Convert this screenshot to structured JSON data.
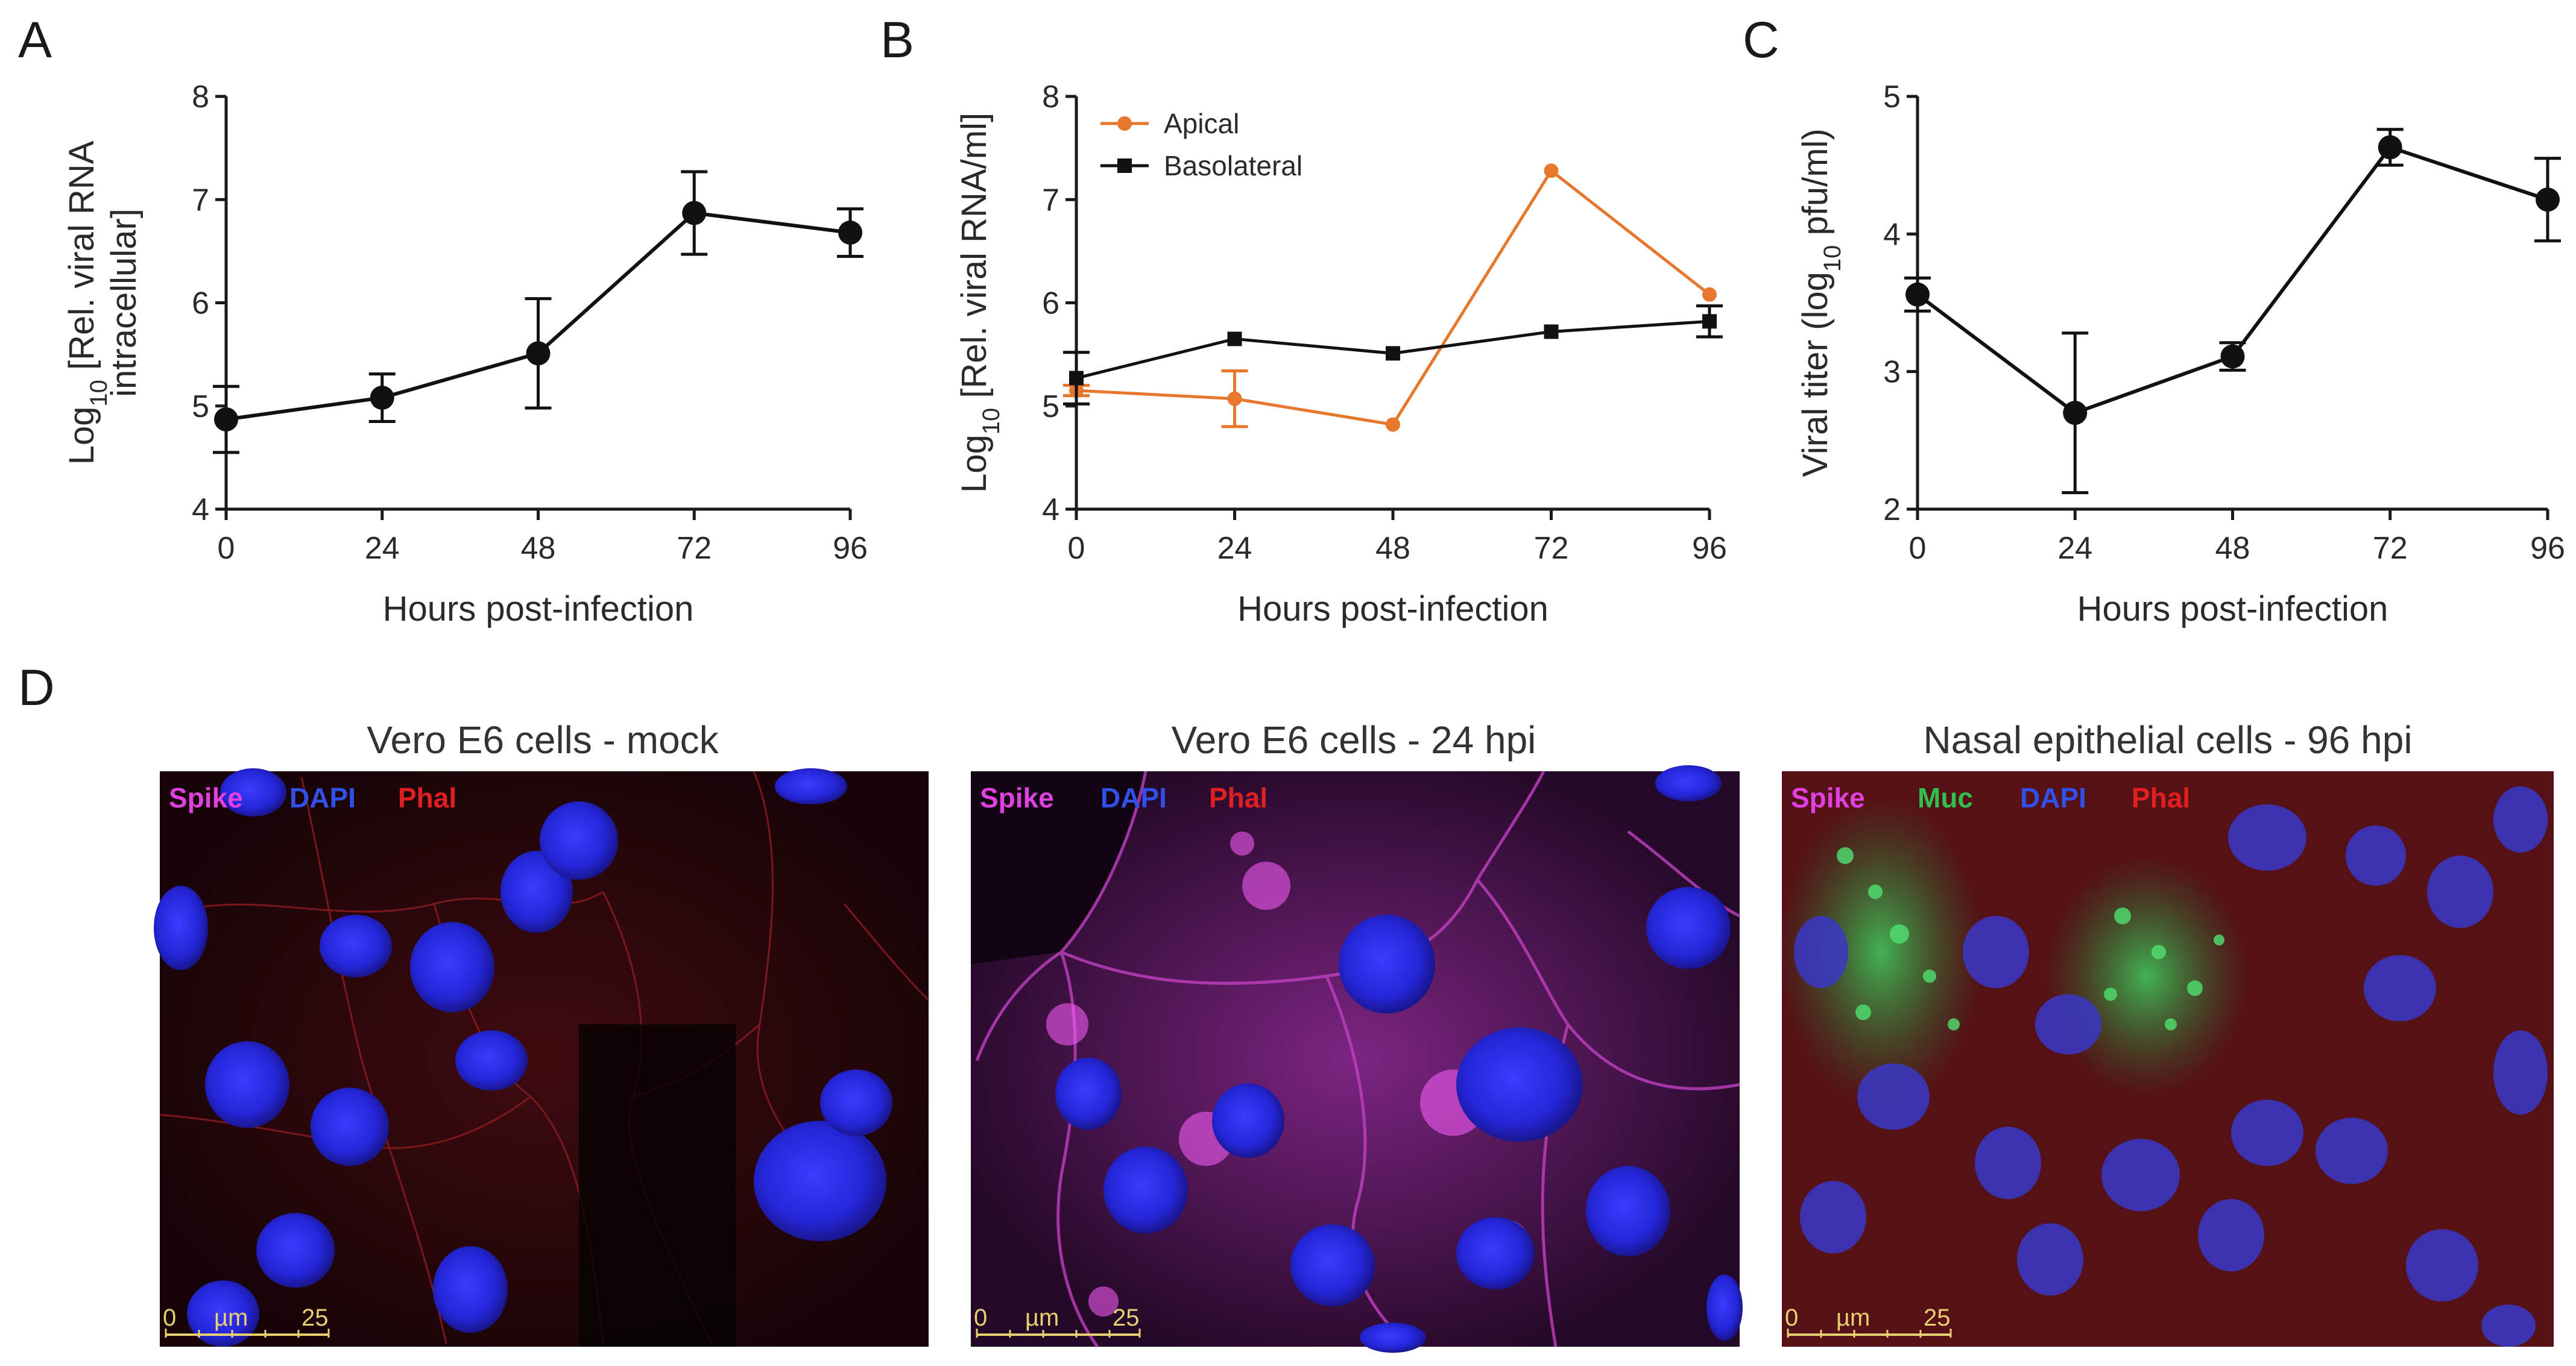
{
  "panels": {
    "A": {
      "letter": "A"
    },
    "B": {
      "letter": "B"
    },
    "C": {
      "letter": "C"
    },
    "D": {
      "letter": "D"
    }
  },
  "chart_data": [
    {
      "id": "A",
      "type": "line",
      "x": [
        0,
        24,
        48,
        72,
        96
      ],
      "xticks": [
        "0",
        "24",
        "48",
        "72",
        "96"
      ],
      "xlim": [
        0,
        96
      ],
      "ylim": [
        4,
        8
      ],
      "yticks": [
        "4",
        "5",
        "6",
        "7",
        "8"
      ],
      "xlabel": "Hours post-infection",
      "ylabel_line1": "Log10 [Rel. viral RNA",
      "ylabel_line2": "intracellular]",
      "series": [
        {
          "values": [
            4.87,
            5.08,
            5.51,
            6.87,
            6.68
          ],
          "err": [
            0.32,
            0.23,
            0.53,
            0.4,
            0.23
          ],
          "color": "#111111",
          "marker": "circle"
        }
      ]
    },
    {
      "id": "B",
      "type": "line",
      "x": [
        0,
        24,
        48,
        72,
        96
      ],
      "xticks": [
        "0",
        "24",
        "48",
        "72",
        "96"
      ],
      "xlim": [
        0,
        96
      ],
      "ylim": [
        4,
        8
      ],
      "yticks": [
        "4",
        "5",
        "6",
        "7",
        "8"
      ],
      "xlabel": "Hours post-infection",
      "ylabel": "Log10 [Rel. viral RNA/ml]",
      "legend_position": "top-left",
      "series": [
        {
          "name": "Apical",
          "values": [
            5.15,
            5.07,
            4.82,
            7.28,
            6.08
          ],
          "err": [
            0.05,
            0.27,
            0.0,
            0.0,
            0.0
          ],
          "color": "#e8772e",
          "marker": "circle"
        },
        {
          "name": "Basolateral",
          "values": [
            5.27,
            5.65,
            5.51,
            5.72,
            5.82
          ],
          "err": [
            0.25,
            0.0,
            0.0,
            0.0,
            0.15
          ],
          "color": "#111111",
          "marker": "square"
        }
      ]
    },
    {
      "id": "C",
      "type": "line",
      "x": [
        0,
        24,
        48,
        72,
        96
      ],
      "xticks": [
        "0",
        "24",
        "48",
        "72",
        "96"
      ],
      "xlim": [
        0,
        96
      ],
      "ylim": [
        2,
        5
      ],
      "yticks": [
        "2",
        "3",
        "4",
        "5"
      ],
      "xlabel": "Hours post-infection",
      "ylabel": "Viral titer (log10 pfu/ml)",
      "series": [
        {
          "values": [
            3.56,
            2.7,
            3.11,
            4.63,
            4.25
          ],
          "err": [
            0.12,
            0.58,
            0.1,
            0.13,
            0.3
          ],
          "color": "#111111",
          "marker": "circle"
        }
      ]
    }
  ],
  "micrographs": [
    {
      "title": "Vero E6 cells - mock",
      "stains": [
        {
          "label": "Spike",
          "color": "#e040e0"
        },
        {
          "label": "DAPI",
          "color": "#3050e8"
        },
        {
          "label": "Phal",
          "color": "#e02020"
        }
      ],
      "scale": {
        "start": "0",
        "unit": "µm",
        "end": "25"
      }
    },
    {
      "title": "Vero E6 cells - 24 hpi",
      "stains": [
        {
          "label": "Spike",
          "color": "#e040e0"
        },
        {
          "label": "DAPI",
          "color": "#3050e8"
        },
        {
          "label": "Phal",
          "color": "#e02020"
        }
      ],
      "scale": {
        "start": "0",
        "unit": "µm",
        "end": "25"
      }
    },
    {
      "title": "Nasal epithelial cells - 96 hpi",
      "stains": [
        {
          "label": "Spike",
          "color": "#e040e0"
        },
        {
          "label": "Muc",
          "color": "#30c050"
        },
        {
          "label": "DAPI",
          "color": "#3050e8"
        },
        {
          "label": "Phal",
          "color": "#e02020"
        }
      ],
      "scale": {
        "start": "0",
        "unit": "µm",
        "end": "25"
      }
    }
  ]
}
